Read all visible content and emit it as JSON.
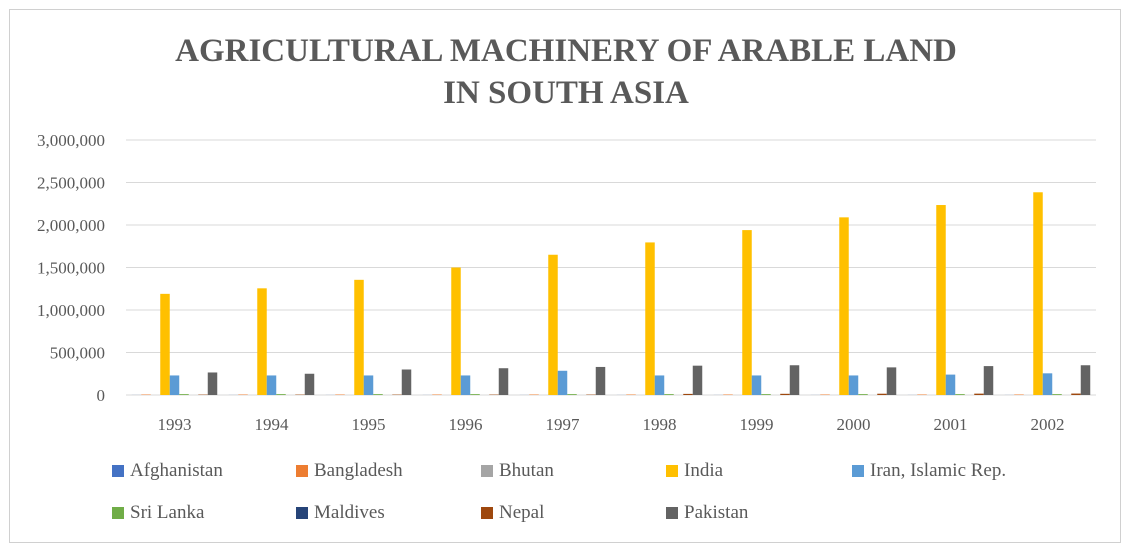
{
  "chart_data": {
    "type": "bar",
    "title": [
      "AGRICULTURAL MACHINERY OF ARABLE LAND",
      "IN SOUTH ASIA"
    ],
    "xlabel": "",
    "ylabel": "",
    "ylim": [
      0,
      3000000
    ],
    "yticks": [
      0,
      500000,
      1000000,
      1500000,
      2000000,
      2500000,
      3000000
    ],
    "ytick_labels": [
      "0",
      "500,000",
      "1,000,000",
      "1,500,000",
      "2,000,000",
      "2,500,000",
      "3,000,000"
    ],
    "grid": true,
    "legend_position": "bottom",
    "categories": [
      "1993",
      "1994",
      "1995",
      "1996",
      "1997",
      "1998",
      "1999",
      "2000",
      "2001",
      "2002"
    ],
    "series": [
      {
        "name": "Afghanistan",
        "color": "#4472C4",
        "values": [
          800,
          800,
          800,
          800,
          800,
          800,
          800,
          800,
          800,
          800
        ]
      },
      {
        "name": "Bangladesh",
        "color": "#ED7D31",
        "values": [
          5500,
          5600,
          5600,
          5700,
          5700,
          5700,
          5800,
          5800,
          5900,
          5900
        ]
      },
      {
        "name": "Bhutan",
        "color": "#A5A5A5",
        "values": [
          0,
          0,
          0,
          0,
          0,
          0,
          0,
          0,
          0,
          0
        ]
      },
      {
        "name": "India",
        "color": "#FFC000",
        "values": [
          1190000,
          1255000,
          1355000,
          1500000,
          1650000,
          1795000,
          1940000,
          2090000,
          2235000,
          2385000
        ]
      },
      {
        "name": "Iran, Islamic Rep.",
        "color": "#5B9BD5",
        "values": [
          230000,
          230000,
          230000,
          230000,
          285000,
          230000,
          230000,
          230000,
          240000,
          255000
        ]
      },
      {
        "name": "Sri Lanka",
        "color": "#70AD47",
        "values": [
          10000,
          10000,
          10000,
          10000,
          10000,
          10000,
          10000,
          10000,
          10000,
          10000
        ]
      },
      {
        "name": "Maldives",
        "color": "#264478",
        "values": [
          0,
          0,
          0,
          0,
          0,
          0,
          0,
          0,
          0,
          0
        ]
      },
      {
        "name": "Nepal",
        "color": "#9E480E",
        "values": [
          4500,
          4600,
          4600,
          4700,
          4700,
          13000,
          14000,
          15000,
          16000,
          17000
        ]
      },
      {
        "name": "Pakistan",
        "color": "#636363",
        "values": [
          265000,
          250000,
          300000,
          315000,
          330000,
          345000,
          350000,
          325000,
          340000,
          350000
        ]
      }
    ]
  }
}
